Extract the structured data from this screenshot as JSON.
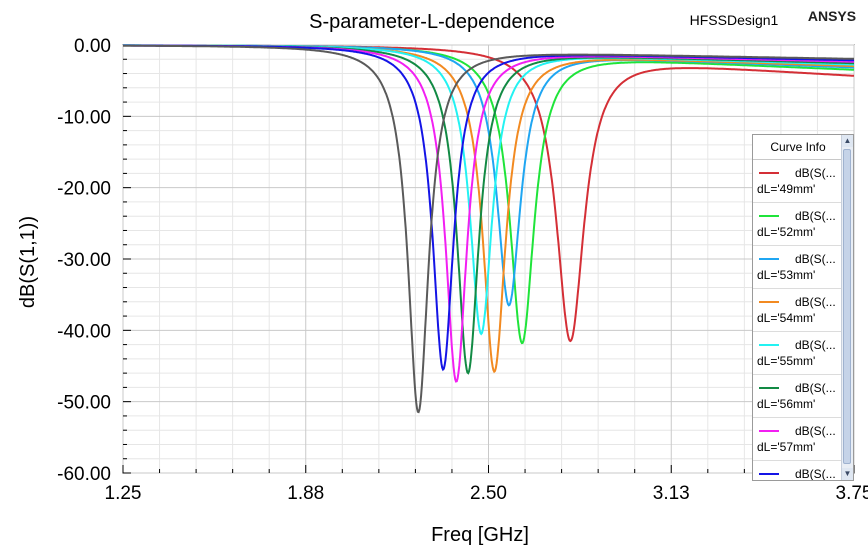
{
  "header": {
    "title": "S-parameter-L-dependence",
    "design": "HFSSDesign1",
    "brand": "ANSYS"
  },
  "legend": {
    "title": "Curve Info",
    "items": [
      {
        "series": "dB(S(...",
        "param": "dL='49mm'",
        "color": "#d42f36"
      },
      {
        "series": "dB(S(...",
        "param": "dL='52mm'",
        "color": "#1fe43a"
      },
      {
        "series": "dB(S(...",
        "param": "dL='53mm'",
        "color": "#1fa6f2"
      },
      {
        "series": "dB(S(...",
        "param": "dL='54mm'",
        "color": "#f28a21"
      },
      {
        "series": "dB(S(...",
        "param": "dL='55mm'",
        "color": "#23f2f2"
      },
      {
        "series": "dB(S(...",
        "param": "dL='56mm'",
        "color": "#128a44"
      },
      {
        "series": "dB(S(...",
        "param": "dL='57mm'",
        "color": "#f21ff2"
      },
      {
        "series": "dB(S(...",
        "param": "",
        "color": "#1414e6"
      }
    ],
    "scroll_up": "▲",
    "scroll_down": "▼"
  },
  "chart_data": {
    "type": "line",
    "title": "S-parameter-L-dependence",
    "xlabel": "Freq [GHz]",
    "ylabel": "dB(S(1,1))",
    "xlim": [
      1.25,
      3.75
    ],
    "ylim": [
      -60,
      0
    ],
    "x_ticks": [
      "1.25",
      "1.88",
      "2.50",
      "3.13",
      "3.75"
    ],
    "y_ticks": [
      "0.00",
      "-10.00",
      "-20.00",
      "-30.00",
      "-40.00",
      "-50.00",
      "-60.00"
    ],
    "grid": true,
    "legend_position": "right",
    "series": [
      {
        "name": "dL='49mm'",
        "color": "#d42f36",
        "f0": 2.78,
        "min_db": -41.5,
        "width": 0.078,
        "end_db": -4.2
      },
      {
        "name": "dL='52mm'",
        "color": "#1fe43a",
        "f0": 2.615,
        "min_db": -41.8,
        "width": 0.068,
        "end_db": -3.4
      },
      {
        "name": "dL='53mm'",
        "color": "#1fa6f2",
        "f0": 2.57,
        "min_db": -36.5,
        "width": 0.066,
        "end_db": -3.1
      },
      {
        "name": "dL='54mm'",
        "color": "#f28a21",
        "f0": 2.52,
        "min_db": -45.8,
        "width": 0.064,
        "end_db": -2.9
      },
      {
        "name": "dL='55mm'",
        "color": "#23f2f2",
        "f0": 2.475,
        "min_db": -40.5,
        "width": 0.062,
        "end_db": -2.7
      },
      {
        "name": "dL='56mm'",
        "color": "#128a44",
        "f0": 2.43,
        "min_db": -46.0,
        "width": 0.061,
        "end_db": -2.5
      },
      {
        "name": "dL='57mm'",
        "color": "#f21ff2",
        "f0": 2.39,
        "min_db": -47.2,
        "width": 0.06,
        "end_db": -2.3
      },
      {
        "name": "",
        "color": "#1414e6",
        "f0": 2.345,
        "min_db": -45.5,
        "width": 0.059,
        "end_db": -2.1
      },
      {
        "name": "",
        "color": "#5a5a5a",
        "f0": 2.26,
        "min_db": -51.5,
        "width": 0.058,
        "end_db": -1.9
      }
    ]
  }
}
